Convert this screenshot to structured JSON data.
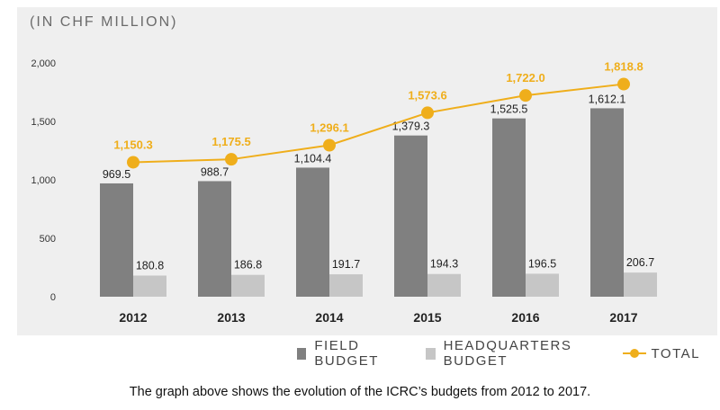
{
  "unit_label": "(IN CHF MILLION)",
  "caption": "The graph above shows the evolution of the ICRC’s budgets from 2012 to 2017.",
  "legend": {
    "field": "FIELD BUDGET",
    "headquarters": "HEADQUARTERS BUDGET",
    "total": "TOTAL"
  },
  "colors": {
    "panel": "#efefef",
    "field": "#808080",
    "headquarters": "#c6c6c6",
    "total": "#efae1b"
  },
  "chart_data": {
    "type": "bar",
    "categories": [
      "2012",
      "2013",
      "2014",
      "2015",
      "2016",
      "2017"
    ],
    "ylim": [
      0,
      2000
    ],
    "yticks": [
      0,
      500,
      1000,
      1500,
      2000
    ],
    "ytick_labels": [
      "0",
      "500",
      "1,000",
      "1,500",
      "2,000"
    ],
    "series": [
      {
        "name": "FIELD BUDGET",
        "kind": "bar",
        "values": [
          969.5,
          988.7,
          1104.4,
          1379.3,
          1525.5,
          1612.1
        ],
        "labels": [
          "969.5",
          "988.7",
          "1,104.4",
          "1,379.3",
          "1,525.5",
          "1,612.1"
        ]
      },
      {
        "name": "HEADQUARTERS BUDGET",
        "kind": "bar",
        "values": [
          180.8,
          186.8,
          191.7,
          194.3,
          196.5,
          206.7
        ],
        "labels": [
          "180.8",
          "186.8",
          "191.7",
          "194.3",
          "196.5",
          "206.7"
        ]
      },
      {
        "name": "TOTAL",
        "kind": "line",
        "values": [
          1150.3,
          1175.5,
          1296.1,
          1573.6,
          1722.0,
          1818.8
        ],
        "labels": [
          "1,150.3",
          "1,175.5",
          "1,296.1",
          "1,573.6",
          "1,722.0",
          "1,818.8"
        ]
      }
    ],
    "grid": false,
    "legend_position": "bottom-right"
  }
}
